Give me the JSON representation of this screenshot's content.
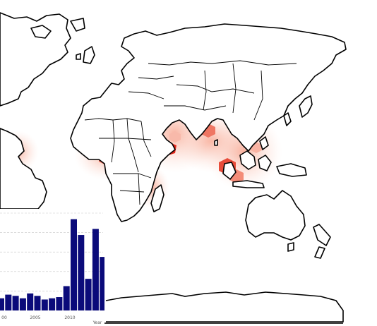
{
  "map": {
    "hotspot_color": "#e3281c",
    "heat_color": "#fbd0c4",
    "hotspots": [
      {
        "name": "gulf-of-aden",
        "level": 1.0
      },
      {
        "name": "gulf-of-guinea",
        "level": 0.75
      },
      {
        "name": "bay-of-bengal",
        "level": 0.7
      },
      {
        "name": "strait-of-malacca",
        "level": 0.85
      },
      {
        "name": "java-sea",
        "level": 0.6
      }
    ]
  },
  "chart_data": {
    "type": "bar",
    "x": [
      1995,
      1996,
      1997,
      1998,
      1999,
      2000,
      2001,
      2002,
      2003,
      2004,
      2005,
      2006,
      2007,
      2008,
      2009,
      2010,
      2011,
      2012
    ],
    "values": [
      10,
      13,
      12,
      10,
      14,
      12,
      9,
      10,
      11,
      20,
      75,
      62,
      26,
      67,
      44,
      2,
      1,
      1
    ],
    "xticks": [
      "00",
      "2005",
      "2010"
    ],
    "xlabel": "Year",
    "ylim": [
      0,
      80
    ],
    "grid": true,
    "bar_color": "#0b0b7a"
  }
}
